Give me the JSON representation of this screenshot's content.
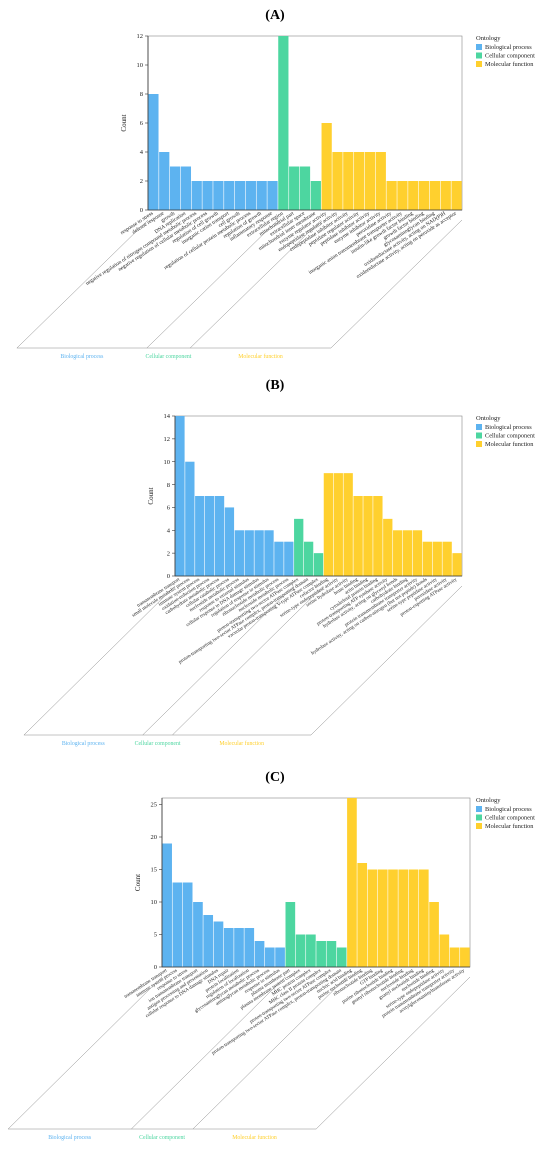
{
  "colors": {
    "Biological process": "#5DB3F0",
    "Cellular component": "#4DD6A0",
    "Molecular function": "#FFD02E"
  },
  "chart_data": [
    {
      "type": "bar",
      "panel_label": "(A)",
      "ylabel": "Count",
      "ylim": [
        0,
        12
      ],
      "yticks": [
        0,
        2,
        4,
        6,
        8,
        10,
        12
      ],
      "legend": {
        "title": "Ontology",
        "entries": [
          "Biological process",
          "Cellular component",
          "Molecular function"
        ],
        "placement": "top-right"
      },
      "groups": [
        {
          "name": "Biological process",
          "categories": [
            "response to stress",
            "defense response",
            "growth",
            "DNA replication",
            "negative regulation of nitrogen compound metabolic process",
            "negative regulation of cellular metabolic process",
            "regulation of cell growth",
            "inorganic cation transport",
            "cell growth",
            "regulation of cellular protein metabolic process",
            "regulation of growth",
            "inflammatory response"
          ],
          "values": [
            8,
            4,
            3,
            3,
            2,
            2,
            2,
            2,
            2,
            2,
            2,
            2
          ]
        },
        {
          "name": "Cellular component",
          "categories": [
            "extracellular region",
            "mitochondrial part",
            "extracellular space",
            "mitochondrial inner membrane"
          ],
          "values": [
            12,
            3,
            3,
            2
          ]
        },
        {
          "name": "Molecular function",
          "categories": [
            "enzyme regulator activity",
            "endopeptidase regulator activity",
            "endopeptidase inhibitor activity",
            "peptidase regulator activity",
            "peptidase inhibitor activity",
            "enzyme inhibitor activity",
            "peroxidase activity",
            "inorganic anion transmembrane transporter activity",
            "insulin-like growth factor binding",
            "growth factor binding",
            "glycosaminoglycan binding",
            "oxidoreductase activity, acting on NAD(P)H",
            "oxidoreductase activity, acting on peroxide as acceptor"
          ],
          "values": [
            6,
            4,
            4,
            4,
            4,
            4,
            2,
            2,
            2,
            2,
            2,
            2,
            2
          ]
        }
      ]
    },
    {
      "type": "bar",
      "panel_label": "(B)",
      "ylabel": "Count",
      "ylim": [
        0,
        14
      ],
      "yticks": [
        0,
        2,
        4,
        6,
        8,
        10,
        12,
        14
      ],
      "legend": {
        "title": "Ontology",
        "entries": [
          "Biological process",
          "Cellular component",
          "Molecular function"
        ],
        "placement": "top-right"
      },
      "groups": [
        {
          "name": "Biological process",
          "categories": [
            "transmembrane transport",
            "small molecule metabolic process",
            "immune system process",
            "oxidation-reduction process",
            "carbohydrate metabolic process",
            "cellular catabolic process",
            "nucleotide metabolic process",
            "response to external stimulus",
            "cellular response to DNA damage stimulus",
            "regulation of response to stimulus",
            "ribonucleotide metabolic process",
            "nucleoside metabolic process"
          ],
          "values": [
            14,
            10,
            7,
            7,
            7,
            6,
            4,
            4,
            4,
            4,
            3,
            3
          ]
        },
        {
          "name": "Cellular component",
          "categories": [
            "proton-transporting two-sector ATPase complex",
            "proton-transporting two-sector ATPase complex, proton-transporting domain",
            "vacuolar proton-transporting V-type ATPase complex"
          ],
          "values": [
            5,
            3,
            2
          ]
        },
        {
          "name": "Molecular function",
          "categories": [
            "cofactor binding",
            "serine-type endopeptidase activity",
            "serine hydrolase activity",
            "heme binding",
            "actin binding",
            "cytoskeletal protein binding",
            "proton-transporting ATP synthase activity",
            "hydrolase activity, acting on glycosyl bonds",
            "carbohydrate binding",
            "protein transmembrane transporter activity",
            "hydrolase activity, acting on carbon-nitrogen (but not peptide) bonds",
            "serine-type peptidase activity",
            "peroxidase activity",
            "proton-exporting ATPase activity"
          ],
          "values": [
            9,
            9,
            9,
            7,
            7,
            7,
            5,
            4,
            4,
            4,
            3,
            3,
            3,
            2
          ]
        }
      ]
    },
    {
      "type": "bar",
      "panel_label": "(C)",
      "ylabel": "Count",
      "ylim": [
        0,
        26
      ],
      "yticks": [
        0,
        5,
        10,
        15,
        20,
        25
      ],
      "legend": {
        "title": "Ontology",
        "entries": [
          "Biological process",
          "Cellular component",
          "Molecular function"
        ],
        "placement": "top-right"
      },
      "groups": [
        {
          "name": "Biological process",
          "categories": [
            "transmembrane transport",
            "immune system process",
            "response to stress",
            "ion transmembrane transport",
            "antigen processing and presentation",
            "cellular response to DNA damage stimulus",
            "DNA repair",
            "protein localization",
            "regulation of localization",
            "glycosaminoglycan metabolic process",
            "aminoglycan metabolic process",
            "response to stimulus"
          ],
          "values": [
            19,
            13,
            13,
            10,
            8,
            7,
            6,
            6,
            6,
            4,
            3,
            3
          ]
        },
        {
          "name": "Cellular component",
          "categories": [
            "plasma membrane part",
            "plasma membrane protein complex",
            "MHC protein complex",
            "MHC class II protein complex",
            "proton-transporting two-sector ATPase complex",
            "proton-transporting two-sector ATPase complex, proton-transporting domain"
          ],
          "values": [
            10,
            5,
            5,
            4,
            4,
            3
          ]
        },
        {
          "name": "Molecular function",
          "categories": [
            "nucleic acid binding",
            "purine nucleotide binding",
            "ribonucleotide binding",
            "GTP binding",
            "purine ribonucleotide binding",
            "guanyl ribonucleotide binding",
            "nucleoside binding",
            "guanyl nucleotide binding",
            "nucleotide binding",
            "serine-type endopeptidase activity",
            "protein transmembrane transporter activity",
            "acetylglucosaminyltransferase activity"
          ],
          "values": [
            26,
            16,
            15,
            15,
            15,
            15,
            15,
            15,
            10,
            5,
            3,
            3
          ]
        }
      ]
    }
  ]
}
